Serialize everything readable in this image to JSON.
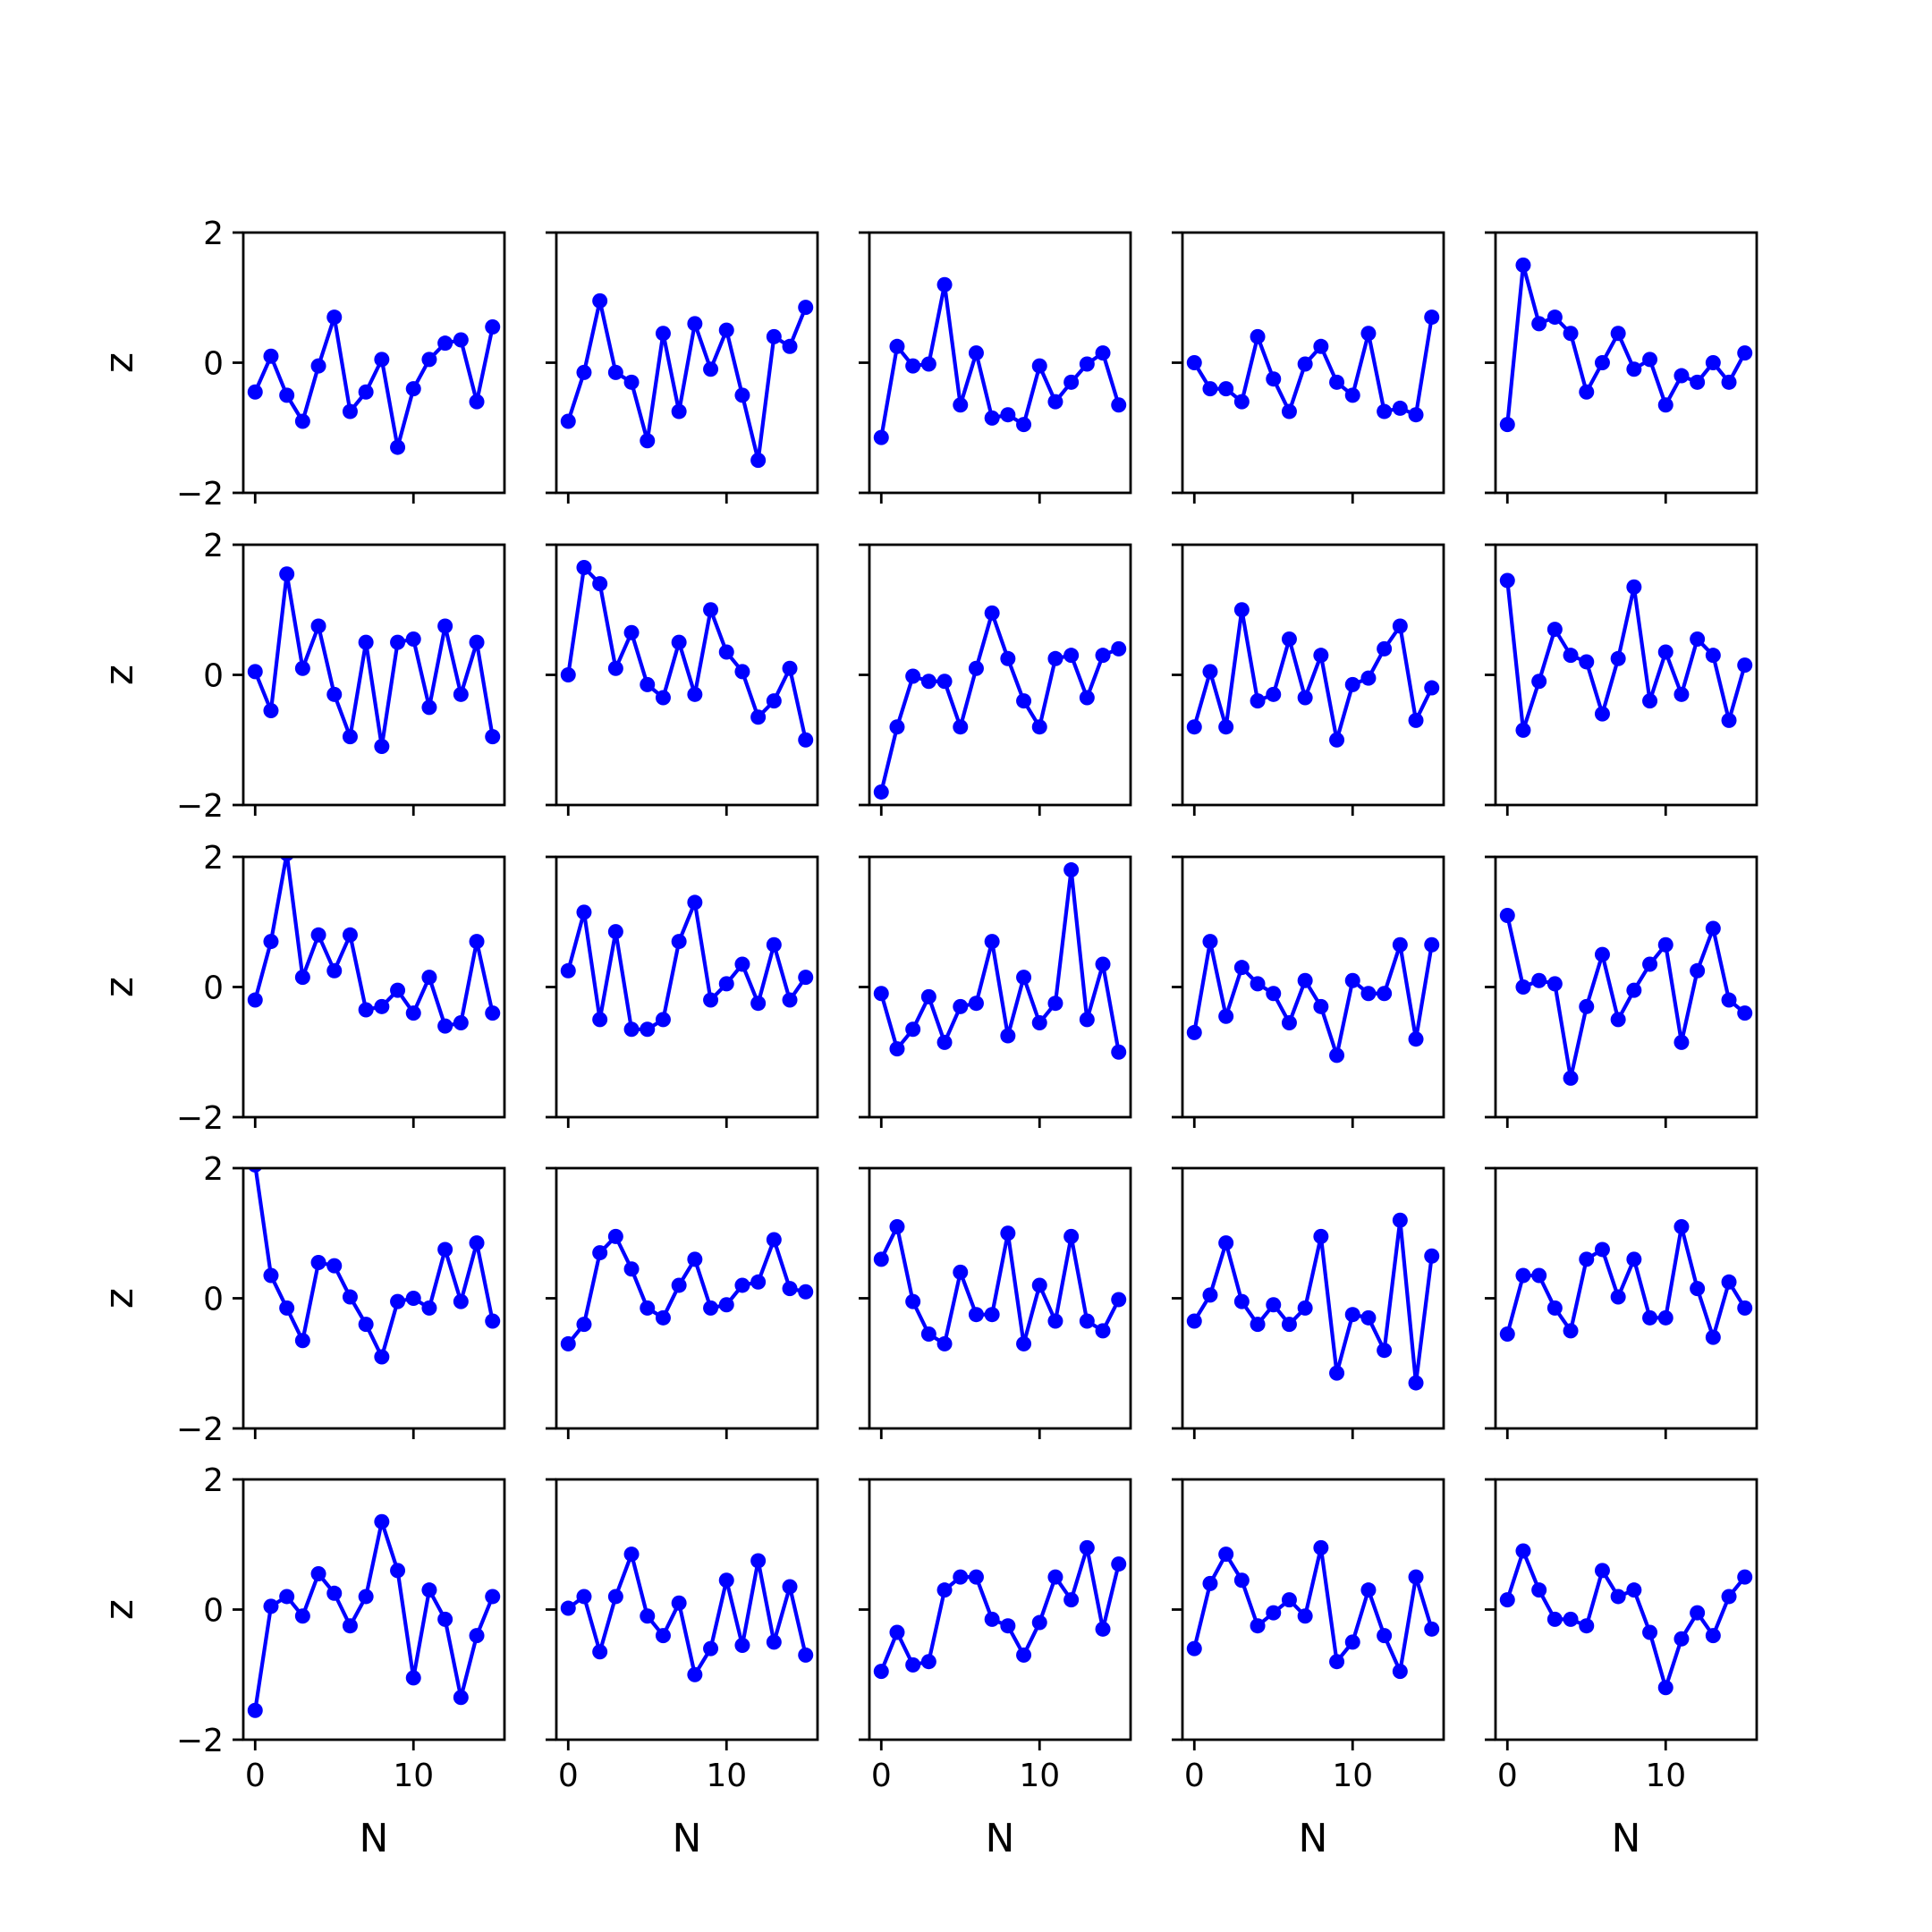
{
  "chart_data": {
    "type": "line",
    "layout": "5x5 grid of subplots",
    "xlabel": "N",
    "ylabel": "z",
    "xlim": [
      -0.75,
      15.75
    ],
    "ylim": [
      -2,
      2
    ],
    "xticks": [
      0,
      10
    ],
    "yticks": [
      -2,
      0,
      2
    ],
    "x": [
      0,
      1,
      2,
      3,
      4,
      5,
      6,
      7,
      8,
      9,
      10,
      11,
      12,
      13,
      14,
      15
    ],
    "line_color": "#0000ff",
    "marker": "circle",
    "grid": false,
    "panels": [
      {
        "row": 0,
        "col": 0,
        "values": [
          -0.45,
          0.1,
          -0.5,
          -0.9,
          -0.05,
          0.7,
          -0.75,
          -0.45,
          0.05,
          -1.3,
          -0.4,
          0.05,
          0.3,
          0.35,
          -0.6,
          0.55
        ]
      },
      {
        "row": 0,
        "col": 1,
        "values": [
          -0.9,
          -0.15,
          0.95,
          -0.15,
          -0.3,
          -1.2,
          0.45,
          -0.75,
          0.6,
          -0.1,
          0.5,
          -0.5,
          -1.5,
          0.4,
          0.25,
          0.85
        ]
      },
      {
        "row": 0,
        "col": 2,
        "values": [
          -1.15,
          0.25,
          -0.05,
          -0.02,
          1.2,
          -0.65,
          0.15,
          -0.85,
          -0.8,
          -0.95,
          -0.05,
          -0.6,
          -0.3,
          -0.02,
          0.15,
          -0.65
        ]
      },
      {
        "row": 0,
        "col": 3,
        "values": [
          0.0,
          -0.4,
          -0.4,
          -0.6,
          0.4,
          -0.25,
          -0.75,
          -0.02,
          0.25,
          -0.3,
          -0.5,
          0.45,
          -0.75,
          -0.7,
          -0.8,
          0.7
        ]
      },
      {
        "row": 0,
        "col": 4,
        "values": [
          -0.95,
          1.5,
          0.6,
          0.7,
          0.45,
          -0.45,
          0.0,
          0.45,
          -0.1,
          0.05,
          -0.65,
          -0.2,
          -0.3,
          0.0,
          -0.3,
          0.15
        ]
      },
      {
        "row": 1,
        "col": 0,
        "values": [
          0.05,
          -0.55,
          1.55,
          0.1,
          0.75,
          -0.3,
          -0.95,
          0.5,
          -1.1,
          0.5,
          0.55,
          -0.5,
          0.75,
          -0.3,
          0.5,
          -0.95
        ]
      },
      {
        "row": 1,
        "col": 1,
        "values": [
          0.0,
          1.65,
          1.4,
          0.1,
          0.65,
          -0.15,
          -0.35,
          0.5,
          -0.3,
          1.0,
          0.35,
          0.05,
          -0.65,
          -0.4,
          0.1,
          -1.0
        ]
      },
      {
        "row": 1,
        "col": 2,
        "values": [
          -1.8,
          -0.8,
          -0.02,
          -0.1,
          -0.1,
          -0.8,
          0.1,
          0.95,
          0.25,
          -0.4,
          -0.8,
          0.25,
          0.3,
          -0.35,
          0.3,
          0.4
        ]
      },
      {
        "row": 1,
        "col": 3,
        "values": [
          -0.8,
          0.05,
          -0.8,
          1.0,
          -0.4,
          -0.3,
          0.55,
          -0.35,
          0.3,
          -1.0,
          -0.15,
          -0.05,
          0.4,
          0.75,
          -0.7,
          -0.2
        ]
      },
      {
        "row": 1,
        "col": 4,
        "values": [
          1.45,
          -0.85,
          -0.1,
          0.7,
          0.3,
          0.2,
          -0.6,
          0.25,
          1.35,
          -0.4,
          0.35,
          -0.3,
          0.55,
          0.3,
          -0.7,
          0.15
        ]
      },
      {
        "row": 2,
        "col": 0,
        "values": [
          -0.2,
          0.7,
          2.05,
          0.15,
          0.8,
          0.25,
          0.8,
          -0.35,
          -0.3,
          -0.05,
          -0.4,
          0.15,
          -0.6,
          -0.55,
          0.7,
          -0.4
        ]
      },
      {
        "row": 2,
        "col": 1,
        "values": [
          0.25,
          1.15,
          -0.5,
          0.85,
          -0.65,
          -0.65,
          -0.5,
          0.7,
          1.3,
          -0.2,
          0.05,
          0.35,
          -0.25,
          0.65,
          -0.2,
          0.15
        ]
      },
      {
        "row": 2,
        "col": 2,
        "values": [
          -0.1,
          -0.95,
          -0.65,
          -0.15,
          -0.85,
          -0.3,
          -0.25,
          0.7,
          -0.75,
          0.15,
          -0.55,
          -0.25,
          1.8,
          -0.5,
          0.35,
          -1.0
        ]
      },
      {
        "row": 2,
        "col": 3,
        "values": [
          -0.7,
          0.7,
          -0.45,
          0.3,
          0.05,
          -0.1,
          -0.55,
          0.1,
          -0.3,
          -1.05,
          0.1,
          -0.1,
          -0.1,
          0.65,
          -0.8,
          0.65
        ]
      },
      {
        "row": 2,
        "col": 4,
        "values": [
          1.1,
          0.0,
          0.1,
          0.05,
          -1.4,
          -0.3,
          0.5,
          -0.5,
          -0.05,
          0.35,
          0.65,
          -0.85,
          0.25,
          0.9,
          -0.2,
          -0.4
        ]
      },
      {
        "row": 3,
        "col": 0,
        "values": [
          2.05,
          0.35,
          -0.15,
          -0.65,
          0.55,
          0.5,
          0.02,
          -0.4,
          -0.9,
          -0.05,
          0.0,
          -0.15,
          0.75,
          -0.05,
          0.85,
          -0.35
        ]
      },
      {
        "row": 3,
        "col": 1,
        "values": [
          -0.7,
          -0.4,
          0.7,
          0.95,
          0.45,
          -0.15,
          -0.3,
          0.2,
          0.6,
          -0.15,
          -0.1,
          0.2,
          0.25,
          0.9,
          0.15,
          0.1
        ]
      },
      {
        "row": 3,
        "col": 2,
        "values": [
          0.6,
          1.1,
          -0.05,
          -0.55,
          -0.7,
          0.4,
          -0.25,
          -0.25,
          1.0,
          -0.7,
          0.2,
          -0.35,
          0.95,
          -0.35,
          -0.5,
          -0.02
        ]
      },
      {
        "row": 3,
        "col": 3,
        "values": [
          -0.35,
          0.05,
          0.85,
          -0.05,
          -0.4,
          -0.1,
          -0.4,
          -0.15,
          0.95,
          -1.15,
          -0.25,
          -0.3,
          -0.8,
          1.2,
          -1.3,
          0.65
        ]
      },
      {
        "row": 3,
        "col": 4,
        "values": [
          -0.55,
          0.35,
          0.35,
          -0.15,
          -0.5,
          0.6,
          0.75,
          0.02,
          0.6,
          -0.3,
          -0.3,
          1.1,
          0.15,
          -0.6,
          0.25,
          -0.15
        ]
      },
      {
        "row": 4,
        "col": 0,
        "values": [
          -1.55,
          0.05,
          0.2,
          -0.1,
          0.55,
          0.25,
          -0.25,
          0.2,
          1.35,
          0.6,
          -1.05,
          0.3,
          -0.15,
          -1.35,
          -0.4,
          0.2
        ]
      },
      {
        "row": 4,
        "col": 1,
        "values": [
          0.02,
          0.2,
          -0.65,
          0.2,
          0.85,
          -0.1,
          -0.4,
          0.1,
          -1.0,
          -0.6,
          0.45,
          -0.55,
          0.75,
          -0.5,
          0.35,
          -0.7
        ]
      },
      {
        "row": 4,
        "col": 2,
        "values": [
          -0.95,
          -0.35,
          -0.85,
          -0.8,
          0.3,
          0.5,
          0.5,
          -0.15,
          -0.25,
          -0.7,
          -0.2,
          0.5,
          0.15,
          0.95,
          -0.3,
          0.7
        ]
      },
      {
        "row": 4,
        "col": 3,
        "values": [
          -0.6,
          0.4,
          0.85,
          0.45,
          -0.25,
          -0.05,
          0.15,
          -0.1,
          0.95,
          -0.8,
          -0.5,
          0.3,
          -0.4,
          -0.95,
          0.5,
          -0.3
        ]
      },
      {
        "row": 4,
        "col": 4,
        "values": [
          0.15,
          0.9,
          0.3,
          -0.15,
          -0.15,
          -0.25,
          0.6,
          0.2,
          0.3,
          -0.35,
          -1.2,
          -0.45,
          -0.05,
          -0.4,
          0.2,
          0.5
        ]
      }
    ]
  }
}
